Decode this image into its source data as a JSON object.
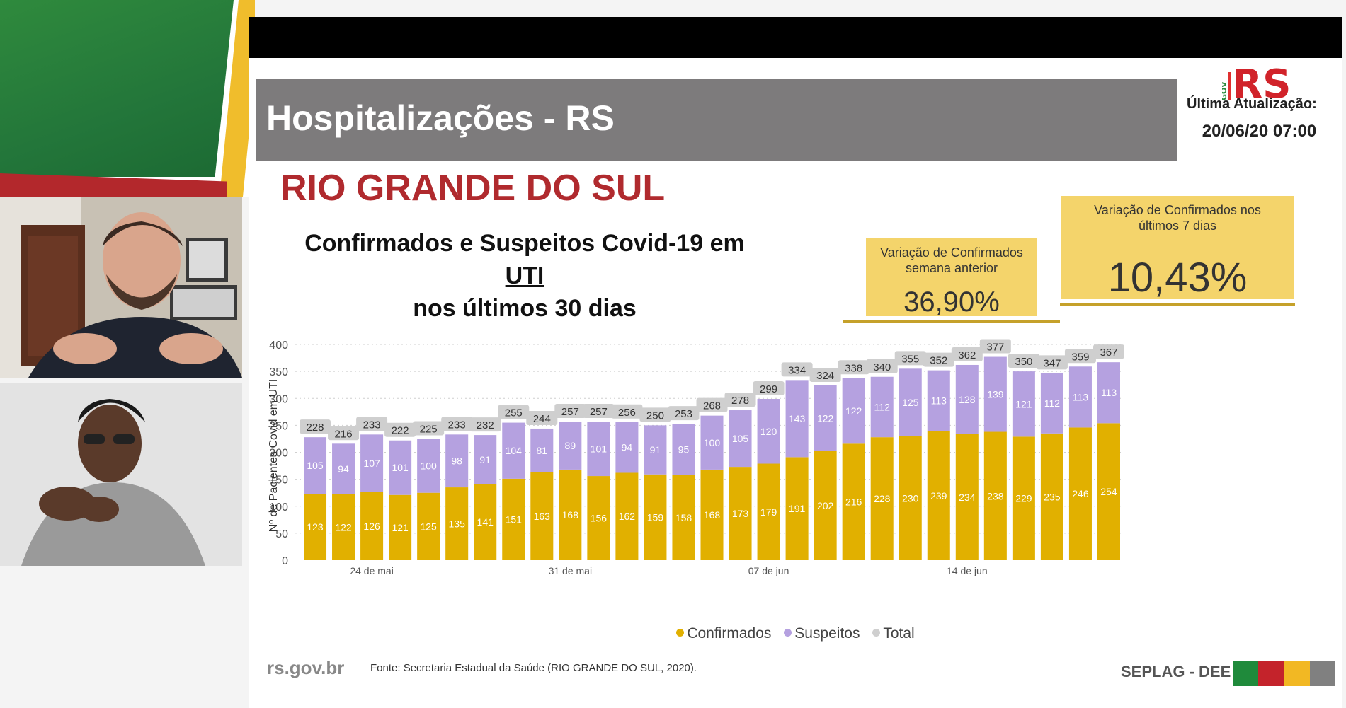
{
  "slide": {
    "title": "Hospitalizações - RS",
    "last_update_label": "Última Atualização:",
    "last_update_value": "20/06/20 07:00",
    "region_title": "RIO GRANDE DO SUL",
    "chart_title_pre": "Confirmados e Suspeitos Covid-19 em ",
    "chart_title_underlined": "UTI",
    "chart_title_line2": "nos últimos 30 dias",
    "kpi_week": {
      "label_line1": "Variação de Confirmados",
      "label_line2": "semana anterior",
      "value": "36,90%"
    },
    "kpi_7d": {
      "label_line1": "Variação de Confirmados nos",
      "label_line2": "últimos 7 dias",
      "value": "10,43%"
    },
    "footer_url": "rs.gov.br",
    "footer_source": "Fonte: Secretaria Estadual da Saúde (RIO GRANDE DO SUL, 2020).",
    "footer_dept": "SEPLAG - DEE",
    "logo_text": "RS",
    "logo_prefix": "GOV",
    "footer_colors": [
      "#1f8a3b",
      "#c4232b",
      "#f2b823",
      "#808080"
    ]
  },
  "chart_data": {
    "type": "bar",
    "stacked": true,
    "ylabel": "Nº de Pacientes Covid em UTI",
    "xlabel": "",
    "ylim": [
      0,
      400
    ],
    "yticks": [
      0,
      50,
      100,
      150,
      200,
      250,
      300,
      350,
      400
    ],
    "x_tick_labels": [
      {
        "index": 2,
        "label": "24 de mai"
      },
      {
        "index": 9,
        "label": "31 de mai"
      },
      {
        "index": 16,
        "label": "07 de jun"
      },
      {
        "index": 23,
        "label": "14 de jun"
      }
    ],
    "series": [
      {
        "name": "Confirmados",
        "color": "#e1b000",
        "values": [
          123,
          122,
          126,
          121,
          125,
          135,
          141,
          151,
          163,
          168,
          156,
          162,
          159,
          158,
          168,
          173,
          179,
          191,
          202,
          216,
          228,
          230,
          239,
          234,
          238,
          229,
          235,
          246,
          254
        ]
      },
      {
        "name": "Suspeitos",
        "color": "#b5a1e0",
        "values": [
          105,
          94,
          107,
          101,
          100,
          98,
          91,
          104,
          81,
          89,
          101,
          94,
          91,
          95,
          100,
          105,
          120,
          143,
          122,
          122,
          112,
          125,
          113,
          128,
          139,
          121,
          112,
          113,
          113
        ]
      }
    ],
    "totals": {
      "name": "Total",
      "color": "#cfcfcf",
      "values": [
        228,
        216,
        233,
        222,
        225,
        233,
        232,
        255,
        244,
        257,
        257,
        256,
        250,
        253,
        268,
        278,
        299,
        334,
        324,
        338,
        340,
        355,
        352,
        362,
        377,
        350,
        347,
        359,
        367
      ]
    },
    "grid": true,
    "legend_position": "bottom"
  }
}
